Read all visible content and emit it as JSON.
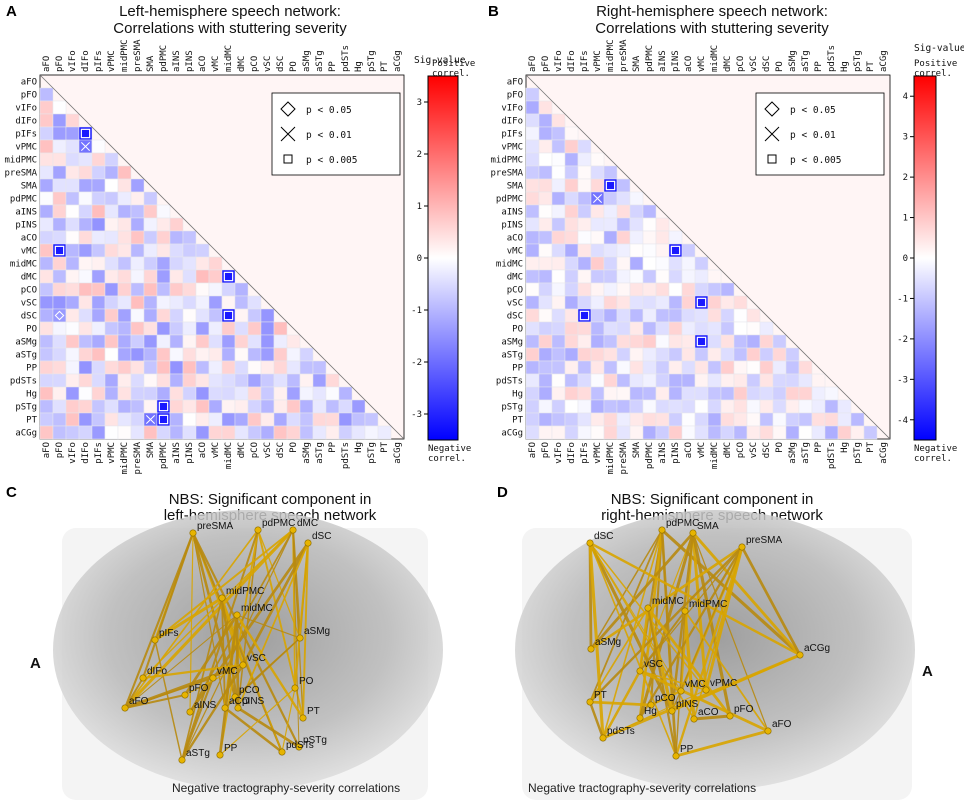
{
  "panels": {
    "A": {
      "letter": "A",
      "title_line1": "Left-hemisphere speech network:",
      "title_line2": "Correlations with stuttering severity"
    },
    "B": {
      "letter": "B",
      "title_line1": "Right-hemisphere speech network:",
      "title_line2": "Correlations with stuttering severity"
    },
    "C": {
      "letter": "C",
      "title_line1": "NBS: Significant component in",
      "title_line2": "left-hemisphere speech network",
      "note": "Negative tractography-severity correlations",
      "side_label": "A"
    },
    "D": {
      "letter": "D",
      "title_line1": "NBS: Significant component in",
      "title_line2": "right-hemisphere speech network",
      "note": "Negative tractography-severity correlations",
      "side_label": "A"
    }
  },
  "legend": {
    "diamond": "p < 0.05",
    "cross": "p < 0.01",
    "square": "p < 0.005"
  },
  "colorbar": {
    "title": "Sig-value",
    "positive": "Positive\ncorrel.",
    "negative": "Negative\ncorrel.",
    "left_ticks": [
      "3",
      "2",
      "1",
      "0",
      "-1",
      "-2",
      "-3"
    ],
    "right_ticks": [
      "4",
      "3",
      "2",
      "1",
      "0",
      "-1",
      "-2",
      "-3",
      "-4"
    ],
    "positive_color": "#ff0000",
    "negative_color": "#0000ff"
  },
  "chart_data": [
    {
      "type": "heatmap",
      "title": "Left-hemisphere speech network: Correlations with stuttering severity",
      "regions": [
        "aFO",
        "pFO",
        "vIFo",
        "dIFo",
        "pIFs",
        "vPMC",
        "midPMC",
        "preSMA",
        "SMA",
        "pdPMC",
        "aINS",
        "pINS",
        "aCO",
        "vMC",
        "midMC",
        "dMC",
        "pCO",
        "vSC",
        "dSC",
        "PO",
        "aSMg",
        "aSTg",
        "PP",
        "pdSTs",
        "Hg",
        "pSTg",
        "PT",
        "aCGg"
      ],
      "value_range": [
        -3.5,
        3.5
      ],
      "markers": [
        {
          "row": "pIFs",
          "col": "dIFo",
          "sig": "p < 0.005"
        },
        {
          "row": "vPMC",
          "col": "dIFo",
          "sig": "p < 0.01"
        },
        {
          "row": "vMC",
          "col": "pFO",
          "sig": "p < 0.005"
        },
        {
          "row": "dMC",
          "col": "midMC",
          "sig": "p < 0.005"
        },
        {
          "row": "dSC",
          "col": "midMC",
          "sig": "p < 0.005"
        },
        {
          "row": "pSTg",
          "col": "pdPMC",
          "sig": "p < 0.005"
        },
        {
          "row": "PT",
          "col": "pdPMC",
          "sig": "p < 0.005"
        },
        {
          "row": "PT",
          "col": "SMA",
          "sig": "p < 0.01"
        },
        {
          "row": "dSC",
          "col": "pFO",
          "sig": "p < 0.05"
        }
      ]
    },
    {
      "type": "heatmap",
      "title": "Right-hemisphere speech network: Correlations with stuttering severity",
      "regions": [
        "aFO",
        "pFO",
        "vIFo",
        "dIFo",
        "pIFs",
        "vPMC",
        "midPMC",
        "preSMA",
        "SMA",
        "pdPMC",
        "aINS",
        "pINS",
        "aCO",
        "vMC",
        "midMC",
        "dMC",
        "pCO",
        "vSC",
        "dSC",
        "PO",
        "aSMg",
        "aSTg",
        "PP",
        "pdSTs",
        "Hg",
        "pSTg",
        "PT",
        "aCGg"
      ],
      "value_range": [
        -4.5,
        4.5
      ],
      "markers": [
        {
          "row": "SMA",
          "col": "midPMC",
          "sig": "p < 0.005"
        },
        {
          "row": "vMC",
          "col": "pINS",
          "sig": "p < 0.005"
        },
        {
          "row": "vSC",
          "col": "vMC",
          "sig": "p < 0.005"
        },
        {
          "row": "aSMg",
          "col": "vMC",
          "sig": "p < 0.005"
        },
        {
          "row": "dSC",
          "col": "pIFs",
          "sig": "p < 0.005"
        },
        {
          "row": "pdPMC",
          "col": "vPMC",
          "sig": "p < 0.01"
        }
      ]
    },
    {
      "type": "network",
      "title": "NBS: Significant component in left-hemisphere speech network",
      "nodes": [
        "preSMA",
        "pdPMC",
        "dMC",
        "dSC",
        "midPMC",
        "midMC",
        "pIFs",
        "dIFo",
        "aFO",
        "vMC",
        "vSC",
        "aSMg",
        "pFO",
        "pCO",
        "aCO",
        "aINS",
        "pINS",
        "PO",
        "PT",
        "pSTg",
        "pdSTs",
        "PP",
        "aSTg"
      ]
    },
    {
      "type": "network",
      "title": "NBS: Significant component in right-hemisphere speech network",
      "nodes": [
        "pdPMC",
        "SMA",
        "dSC",
        "preSMA",
        "midMC",
        "midPMC",
        "aSMg",
        "vSC",
        "PT",
        "vMC",
        "vPMC",
        "pCO",
        "pINS",
        "Hg",
        "aCO",
        "pFO",
        "aFO",
        "pdSTs",
        "PP",
        "aCGg"
      ]
    }
  ]
}
